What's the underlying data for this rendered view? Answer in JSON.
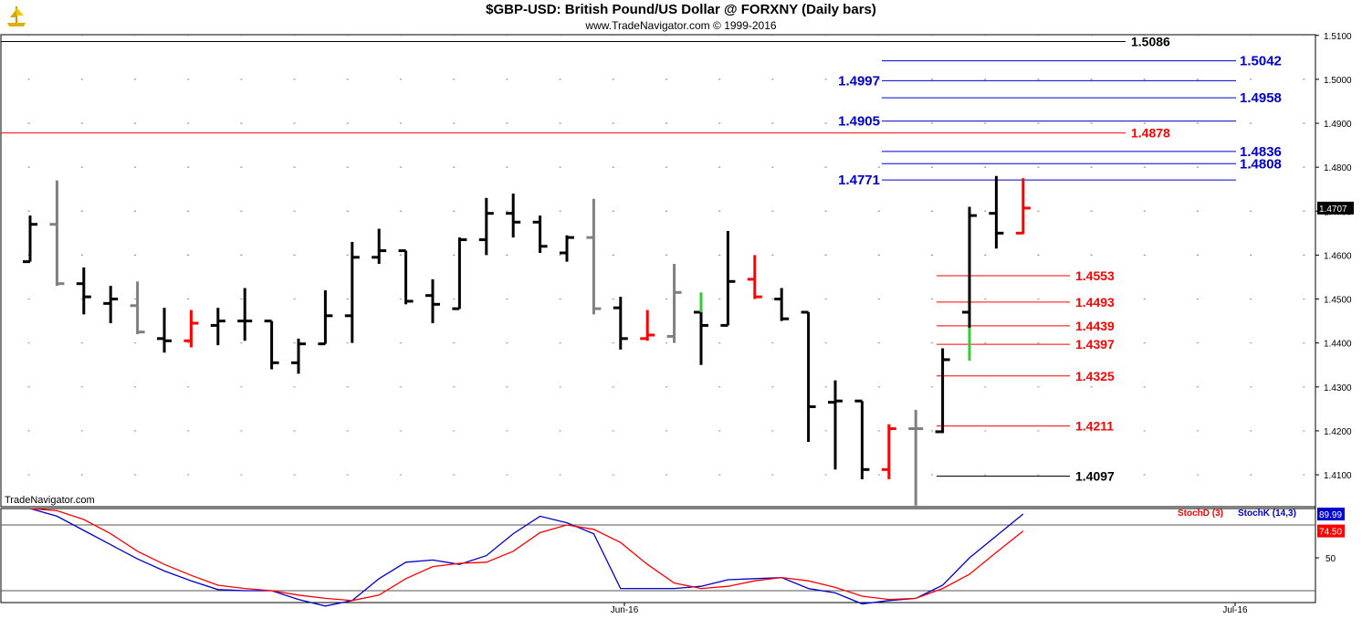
{
  "header": {
    "title": "$GBP-USD:  British Pound/US Dollar @ FORXNY  (Daily bars)",
    "subtitle": "www.TradeNavigator.com © 1999-2016",
    "watermark": "TradeNavigator.com"
  },
  "chart_data": [
    {
      "type": "ohlc",
      "title": "$GBP-USD:  British Pound/US Dollar @ FORXNY  (Daily bars)",
      "ylim": [
        1.4,
        1.51
      ],
      "ytick_labels": [
        "1.5100",
        "1.5000",
        "1.4900",
        "1.4800",
        "1.4700",
        "1.4600",
        "1.4500",
        "1.4400",
        "1.4300",
        "1.4200",
        "1.4100"
      ],
      "last_price_label": "1.4707",
      "x_labels": [
        "Jun-16",
        "Jul-16"
      ],
      "bars": [
        {
          "o": 1.4585,
          "h": 1.469,
          "l": 1.4585,
          "c": 1.467,
          "color": "#000000"
        },
        {
          "o": 1.467,
          "h": 1.477,
          "l": 1.453,
          "c": 1.4535,
          "color": "#808080"
        },
        {
          "o": 1.4535,
          "h": 1.4572,
          "l": 1.4465,
          "c": 1.4505,
          "color": "#000000"
        },
        {
          "o": 1.449,
          "h": 1.453,
          "l": 1.4445,
          "c": 1.45,
          "color": "#000000"
        },
        {
          "o": 1.4485,
          "h": 1.454,
          "l": 1.442,
          "c": 1.4425,
          "color": "#808080"
        },
        {
          "o": 1.441,
          "h": 1.448,
          "l": 1.4378,
          "c": 1.4405,
          "color": "#000000"
        },
        {
          "o": 1.4405,
          "h": 1.4475,
          "l": 1.439,
          "c": 1.4445,
          "color": "#ff0000"
        },
        {
          "o": 1.444,
          "h": 1.448,
          "l": 1.4395,
          "c": 1.445,
          "color": "#000000"
        },
        {
          "o": 1.445,
          "h": 1.4525,
          "l": 1.4405,
          "c": 1.445,
          "color": "#000000"
        },
        {
          "o": 1.445,
          "h": 1.445,
          "l": 1.434,
          "c": 1.4355,
          "color": "#000000"
        },
        {
          "o": 1.4355,
          "h": 1.441,
          "l": 1.433,
          "c": 1.4398,
          "color": "#000000"
        },
        {
          "o": 1.4398,
          "h": 1.452,
          "l": 1.4398,
          "c": 1.4462,
          "color": "#000000"
        },
        {
          "o": 1.4462,
          "h": 1.463,
          "l": 1.44,
          "c": 1.4595,
          "color": "#000000"
        },
        {
          "o": 1.4595,
          "h": 1.466,
          "l": 1.458,
          "c": 1.461,
          "color": "#000000"
        },
        {
          "o": 1.461,
          "h": 1.461,
          "l": 1.4488,
          "c": 1.4495,
          "color": "#000000"
        },
        {
          "o": 1.4508,
          "h": 1.4545,
          "l": 1.4445,
          "c": 1.4488,
          "color": "#000000"
        },
        {
          "o": 1.4478,
          "h": 1.464,
          "l": 1.4478,
          "c": 1.4635,
          "color": "#000000"
        },
        {
          "o": 1.4635,
          "h": 1.473,
          "l": 1.46,
          "c": 1.4695,
          "color": "#000000"
        },
        {
          "o": 1.4695,
          "h": 1.474,
          "l": 1.464,
          "c": 1.4675,
          "color": "#000000"
        },
        {
          "o": 1.4675,
          "h": 1.469,
          "l": 1.4605,
          "c": 1.462,
          "color": "#000000"
        },
        {
          "o": 1.4605,
          "h": 1.4645,
          "l": 1.4585,
          "c": 1.464,
          "color": "#000000"
        },
        {
          "o": 1.464,
          "h": 1.4728,
          "l": 1.4465,
          "c": 1.4478,
          "color": "#808080"
        },
        {
          "o": 1.448,
          "h": 1.4505,
          "l": 1.4385,
          "c": 1.441,
          "color": "#000000"
        },
        {
          "o": 1.441,
          "h": 1.4475,
          "l": 1.4405,
          "c": 1.4418,
          "color": "#ff0000"
        },
        {
          "o": 1.4415,
          "h": 1.458,
          "l": 1.44,
          "c": 1.4515,
          "color": "#808080"
        },
        {
          "o": 1.447,
          "h": 1.448,
          "l": 1.435,
          "c": 1.444,
          "color": "#000000"
        },
        {
          "o": 1.444,
          "h": 1.4655,
          "l": 1.444,
          "c": 1.454,
          "color": "#000000"
        },
        {
          "o": 1.4545,
          "h": 1.46,
          "l": 1.45,
          "c": 1.4505,
          "color": "#ff0000"
        },
        {
          "o": 1.45,
          "h": 1.4525,
          "l": 1.445,
          "c": 1.4455,
          "color": "#000000"
        },
        {
          "o": 1.447,
          "h": 1.447,
          "l": 1.4175,
          "c": 1.4255,
          "color": "#000000"
        },
        {
          "o": 1.4265,
          "h": 1.4315,
          "l": 1.4112,
          "c": 1.4268,
          "color": "#000000"
        },
        {
          "o": 1.4268,
          "h": 1.4268,
          "l": 1.409,
          "c": 1.4112,
          "color": "#000000"
        },
        {
          "o": 1.4112,
          "h": 1.4215,
          "l": 1.409,
          "c": 1.4205,
          "color": "#ff0000"
        },
        {
          "o": 1.4205,
          "h": 1.4248,
          "l": 1.403,
          "c": 1.4205,
          "color": "#808080"
        },
        {
          "o": 1.4198,
          "h": 1.4388,
          "l": 1.4195,
          "c": 1.4362,
          "color": "#000000"
        },
        {
          "o": 1.447,
          "h": 1.471,
          "l": 1.436,
          "c": 1.469,
          "color": "#000000"
        },
        {
          "o": 1.4695,
          "h": 1.478,
          "l": 1.4615,
          "c": 1.465,
          "color": "#000000"
        },
        {
          "o": 1.465,
          "h": 1.4775,
          "l": 1.4648,
          "c": 1.4707,
          "color": "#ff0000"
        }
      ],
      "green_segments": [
        {
          "bar": 25,
          "from": 1.447,
          "to": 1.4515
        },
        {
          "bar": 35,
          "from": 1.436,
          "to": 1.4435
        }
      ],
      "horizontal_levels": [
        {
          "value": 1.5086,
          "label": "1.5086",
          "color": "#000000",
          "label_side": "right"
        },
        {
          "value": 1.5042,
          "label": "1.5042",
          "color": "#0000cc",
          "label_side": "right"
        },
        {
          "value": 1.4997,
          "label": "1.4997",
          "color": "#0000cc",
          "label_side": "left"
        },
        {
          "value": 1.4958,
          "label": "1.4958",
          "color": "#0000cc",
          "label_side": "right"
        },
        {
          "value": 1.4905,
          "label": "1.4905",
          "color": "#0000cc",
          "label_side": "left"
        },
        {
          "value": 1.4878,
          "label": "1.4878",
          "color": "#ff0000",
          "label_side": "right"
        },
        {
          "value": 1.4836,
          "label": "1.4836",
          "color": "#0000cc",
          "label_side": "right"
        },
        {
          "value": 1.4808,
          "label": "1.4808",
          "color": "#0000cc",
          "label_side": "right"
        },
        {
          "value": 1.4771,
          "label": "1.4771",
          "color": "#0000cc",
          "label_side": "left"
        },
        {
          "value": 1.4553,
          "label": "1.4553",
          "color": "#ff0000",
          "label_side": "right"
        },
        {
          "value": 1.4493,
          "label": "1.4493",
          "color": "#ff0000",
          "label_side": "right"
        },
        {
          "value": 1.4439,
          "label": "1.4439",
          "color": "#ff0000",
          "label_side": "right"
        },
        {
          "value": 1.4397,
          "label": "1.4397",
          "color": "#ff0000",
          "label_side": "right"
        },
        {
          "value": 1.4325,
          "label": "1.4325",
          "color": "#ff0000",
          "label_side": "right"
        },
        {
          "value": 1.4211,
          "label": "1.4211",
          "color": "#ff0000",
          "label_side": "right"
        },
        {
          "value": 1.4097,
          "label": "1.4097",
          "color": "#000000",
          "label_side": "right"
        }
      ]
    },
    {
      "type": "line",
      "legend": [
        {
          "name": "StochD (3)",
          "color": "#ff0000"
        },
        {
          "name": "StochK (14,3)",
          "color": "#0000cc"
        }
      ],
      "ylim": [
        0,
        100
      ],
      "ytick_labels": [
        "50"
      ],
      "reference_lines": [
        80,
        20
      ],
      "last_value_labels": [
        {
          "label": "89.99",
          "color": "#0000cc"
        },
        {
          "label": "74.50",
          "color": "#ff0000"
        }
      ],
      "series": [
        {
          "name": "StochK (14,3)",
          "color": "#0000cc",
          "values": [
            95,
            88,
            75,
            62,
            49,
            38,
            29,
            21,
            20,
            20,
            12,
            6,
            11,
            31,
            46,
            48,
            44,
            52,
            72,
            88,
            82,
            72,
            22,
            22,
            22,
            24,
            30,
            31,
            32,
            22,
            18,
            8,
            11,
            13,
            25,
            50,
            70,
            89.99
          ]
        },
        {
          "name": "StochD (3)",
          "color": "#ff0000",
          "values": [
            95,
            93,
            85,
            72,
            56,
            44,
            34,
            25,
            22,
            20,
            16,
            13,
            11,
            16,
            31,
            42,
            45,
            46,
            56,
            73,
            80,
            76,
            64,
            44,
            27,
            22,
            24,
            29,
            32,
            29,
            23,
            15,
            12,
            13,
            22,
            35,
            55,
            74.5
          ]
        }
      ]
    }
  ]
}
